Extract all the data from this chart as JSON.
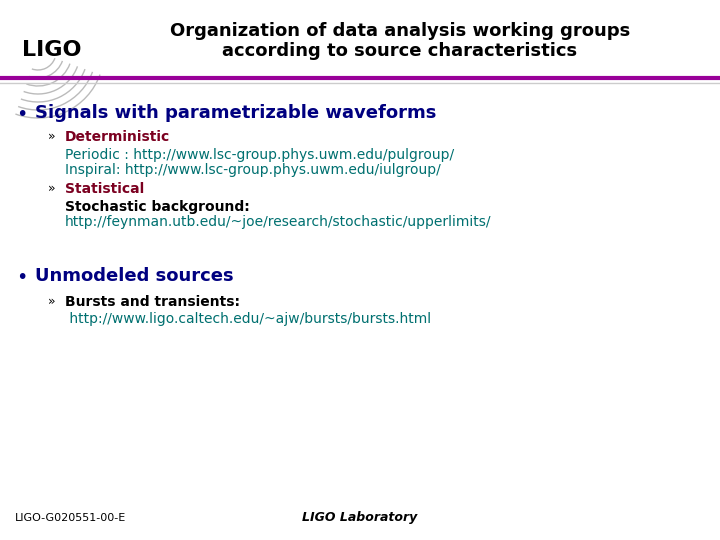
{
  "title_line1": "Organization of data analysis working groups",
  "title_line2": "according to source characteristics",
  "title_fontsize": 13,
  "title_color": "#000000",
  "bg_color": "#ffffff",
  "separator_color_top": "#990099",
  "separator_color_bottom": "#cccccc",
  "bullet1_text": "Signals with parametrizable waveforms",
  "bullet1_color": "#000080",
  "bullet1_fontsize": 13,
  "sub1a_label": "Deterministic",
  "sub1a_color": "#7b0020",
  "sub1a_line1": "Periodic : http://www.lsc-group.phys.uwm.edu/pulgroup/",
  "sub1a_line2": "Inspiral: http://www.lsc-group.phys.uwm.edu/iulgroup/",
  "sub1a_link_color": "#007070",
  "sub1b_label": "Statistical",
  "sub1b_color": "#7b0020",
  "sub1b_line1": "Stochastic background:",
  "sub1b_line2": "http://feynman.utb.edu/~joe/research/stochastic/upperlimits/",
  "sub1b_link_color": "#007070",
  "bullet2_text": "Unmodeled sources",
  "bullet2_color": "#000080",
  "bullet2_fontsize": 13,
  "sub2a_label": "Bursts and transients:",
  "sub2a_line1": " http://www.ligo.caltech.edu/~ajw/bursts/bursts.html",
  "sub2a_link_color": "#007070",
  "footer_left": "LIGO-G020551-00-E",
  "footer_center": "LIGO Laboratory",
  "footer_color": "#000000",
  "footer_fontsize": 8,
  "ligo_text": "LIGO",
  "normal_text_color": "#000000",
  "body_fontsize": 10,
  "sub_fontsize": 10,
  "arrow_color": "#000000"
}
